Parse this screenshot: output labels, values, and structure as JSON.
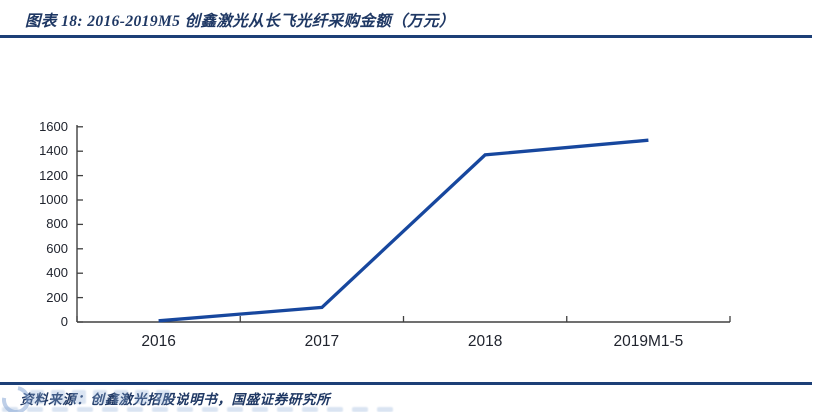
{
  "header": {
    "title": "图表 18: 2016-2019M5 创鑫激光从长飞光纤采购金额（万元）"
  },
  "chart_data": {
    "type": "line",
    "title": "2016-2019M5 创鑫激光从长飞光纤采购金额（万元）",
    "categories": [
      "2016",
      "2017",
      "2018",
      "2019M1-5"
    ],
    "values": [
      10,
      120,
      1370,
      1490
    ],
    "unit": "万元",
    "xlabel": "",
    "ylabel": "",
    "ylim": [
      0,
      1600
    ],
    "y_ticks": [
      0,
      200,
      400,
      600,
      800,
      1000,
      1200,
      1400,
      1600
    ],
    "grid": false,
    "legend": "none"
  },
  "footer": {
    "source": "资料来源：创鑫激光招股说明书，国盛证券研究所"
  },
  "colors": {
    "navy_text": "#1F3864",
    "rule": "#1C3F77",
    "series_line": "#17479E",
    "axis": "#404040",
    "tick_label": "#20242E",
    "watermark": "#A9C4E6"
  }
}
